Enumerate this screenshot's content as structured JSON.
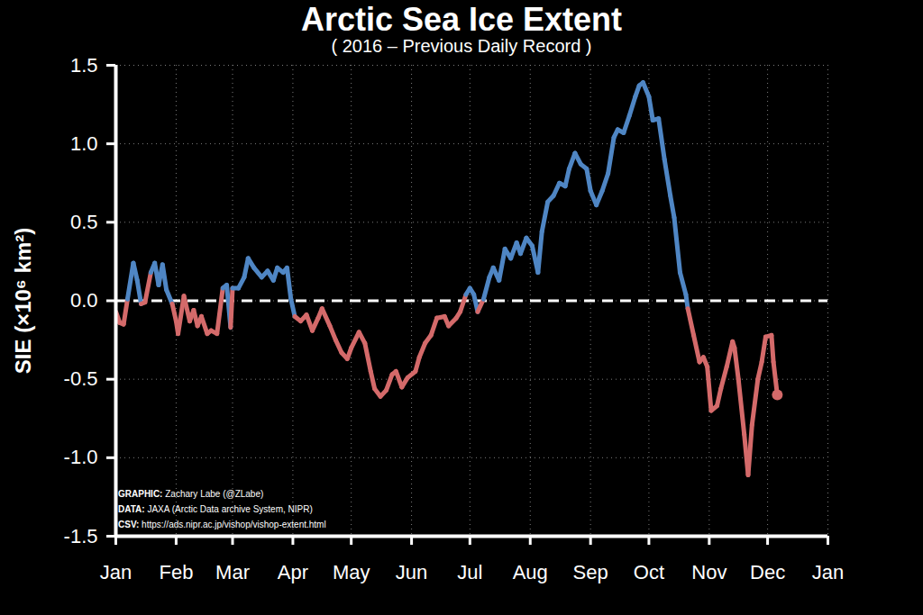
{
  "chart_data": {
    "type": "line",
    "title": "Arctic Sea Ice Extent",
    "subtitle": "( 2016 – Previous Daily Record )",
    "y_label": "SIE (×10⁶ km²)",
    "annotations": [
      "GRAPHIC: Zachary Labe (@ZLabe)",
      "DATA: JAXA (Arctic Data archive System, NIPR)",
      "CSV: https://ads.nipr.ac.jp/vishop/vishop-extent.html"
    ],
    "x": [
      1,
      3,
      5,
      7,
      10,
      12,
      14,
      16,
      19,
      21,
      23,
      25,
      27,
      30,
      32,
      33,
      36,
      39,
      41,
      43,
      45,
      48,
      50,
      53,
      56,
      58,
      60,
      61,
      64,
      67,
      69,
      72,
      76,
      79,
      82,
      84,
      87,
      89,
      91,
      93,
      96,
      99,
      102,
      105,
      107,
      111,
      114,
      117,
      120,
      122,
      126,
      129,
      132,
      134,
      137,
      140,
      143,
      145,
      148,
      151,
      155,
      157,
      160,
      163,
      166,
      170,
      172,
      176,
      178,
      181,
      183,
      185,
      187,
      190,
      193,
      195,
      198,
      201,
      204,
      207,
      209,
      212,
      215,
      218,
      220,
      223,
      226,
      229,
      232,
      234,
      237,
      240,
      243,
      245,
      248,
      251,
      254,
      257,
      259,
      262,
      265,
      268,
      270,
      272,
      275,
      277,
      280,
      283,
      286,
      288,
      291,
      294,
      295,
      298,
      301,
      303,
      305,
      307,
      310,
      312,
      315,
      318,
      319,
      321,
      324,
      326,
      328,
      331,
      333,
      335,
      338,
      339,
      341
    ],
    "values": [
      -0.07,
      -0.14,
      -0.15,
      0.01,
      0.24,
      0.13,
      -0.02,
      -0.01,
      0.18,
      0.24,
      0.1,
      0.23,
      0.07,
      -0.02,
      -0.13,
      -0.21,
      0.03,
      -0.13,
      -0.06,
      -0.16,
      -0.1,
      -0.21,
      -0.19,
      -0.21,
      0.08,
      0.1,
      -0.17,
      0.08,
      0.08,
      0.15,
      0.27,
      0.21,
      0.15,
      0.19,
      0.13,
      0.21,
      0.18,
      0.21,
      0.01,
      -0.1,
      -0.13,
      -0.09,
      -0.19,
      -0.11,
      -0.05,
      -0.16,
      -0.25,
      -0.33,
      -0.37,
      -0.3,
      -0.2,
      -0.27,
      -0.45,
      -0.56,
      -0.61,
      -0.57,
      -0.47,
      -0.45,
      -0.55,
      -0.49,
      -0.45,
      -0.36,
      -0.27,
      -0.22,
      -0.11,
      -0.1,
      -0.16,
      -0.11,
      -0.07,
      0.04,
      0.08,
      0.04,
      -0.07,
      0.01,
      0.15,
      0.21,
      0.13,
      0.33,
      0.27,
      0.37,
      0.3,
      0.4,
      0.35,
      0.18,
      0.44,
      0.63,
      0.67,
      0.75,
      0.73,
      0.84,
      0.94,
      0.87,
      0.84,
      0.7,
      0.61,
      0.7,
      0.81,
      1.04,
      1.09,
      1.07,
      1.18,
      1.3,
      1.37,
      1.39,
      1.3,
      1.15,
      1.16,
      0.9,
      0.67,
      0.53,
      0.18,
      0.04,
      -0.05,
      -0.22,
      -0.39,
      -0.36,
      -0.42,
      -0.7,
      -0.67,
      -0.56,
      -0.42,
      -0.26,
      -0.3,
      -0.5,
      -0.85,
      -1.11,
      -0.79,
      -0.5,
      -0.39,
      -0.23,
      -0.22,
      -0.39,
      -0.6
    ],
    "colors": [
      "#d46a6a",
      "#d46a6a",
      "#d46a6a",
      "#4f86c4",
      "#4f86c4",
      "#4f86c4",
      "#d46a6a",
      "#d46a6a",
      "#4f86c4",
      "#4f86c4",
      "#4f86c4",
      "#4f86c4",
      "#4f86c4",
      "#d46a6a",
      "#d46a6a",
      "#d46a6a",
      "#d46a6a",
      "#d46a6a",
      "#d46a6a",
      "#d46a6a",
      "#d46a6a",
      "#d46a6a",
      "#d46a6a",
      "#d46a6a",
      "#4f86c4",
      "#4f86c4",
      "#d46a6a",
      "#4f86c4",
      "#4f86c4",
      "#4f86c4",
      "#4f86c4",
      "#4f86c4",
      "#4f86c4",
      "#4f86c4",
      "#4f86c4",
      "#4f86c4",
      "#4f86c4",
      "#4f86c4",
      "#4f86c4",
      "#d46a6a",
      "#d46a6a",
      "#d46a6a",
      "#d46a6a",
      "#d46a6a",
      "#d46a6a",
      "#d46a6a",
      "#d46a6a",
      "#d46a6a",
      "#d46a6a",
      "#d46a6a",
      "#d46a6a",
      "#d46a6a",
      "#d46a6a",
      "#d46a6a",
      "#d46a6a",
      "#d46a6a",
      "#d46a6a",
      "#d46a6a",
      "#d46a6a",
      "#d46a6a",
      "#d46a6a",
      "#d46a6a",
      "#d46a6a",
      "#d46a6a",
      "#d46a6a",
      "#d46a6a",
      "#d46a6a",
      "#d46a6a",
      "#d46a6a",
      "#4f86c4",
      "#4f86c4",
      "#4f86c4",
      "#d46a6a",
      "#4f86c4",
      "#4f86c4",
      "#4f86c4",
      "#4f86c4",
      "#4f86c4",
      "#4f86c4",
      "#4f86c4",
      "#4f86c4",
      "#4f86c4",
      "#4f86c4",
      "#4f86c4",
      "#4f86c4",
      "#4f86c4",
      "#4f86c4",
      "#4f86c4",
      "#4f86c4",
      "#4f86c4",
      "#4f86c4",
      "#4f86c4",
      "#4f86c4",
      "#4f86c4",
      "#4f86c4",
      "#4f86c4",
      "#4f86c4",
      "#4f86c4",
      "#4f86c4",
      "#4f86c4",
      "#4f86c4",
      "#4f86c4",
      "#4f86c4",
      "#4f86c4",
      "#4f86c4",
      "#4f86c4",
      "#4f86c4",
      "#4f86c4",
      "#4f86c4",
      "#4f86c4",
      "#4f86c4",
      "#4f86c4",
      "#d46a6a",
      "#d46a6a",
      "#d46a6a",
      "#d46a6a",
      "#d46a6a",
      "#d46a6a",
      "#d46a6a",
      "#d46a6a",
      "#d46a6a",
      "#d46a6a",
      "#d46a6a",
      "#d46a6a",
      "#d46a6a",
      "#d46a6a",
      "#d46a6a",
      "#d46a6a",
      "#d46a6a",
      "#d46a6a",
      "#d46a6a",
      "#d46a6a",
      "#d46a6a"
    ],
    "baseline": 0,
    "xlim": [
      1,
      367
    ],
    "xticks": [
      {
        "value": 1,
        "label": "Jan"
      },
      {
        "value": 32,
        "label": "Feb"
      },
      {
        "value": 61,
        "label": "Mar"
      },
      {
        "value": 92,
        "label": "Apr"
      },
      {
        "value": 122,
        "label": "May"
      },
      {
        "value": 153,
        "label": "Jun"
      },
      {
        "value": 183,
        "label": "Jul"
      },
      {
        "value": 214,
        "label": "Aug"
      },
      {
        "value": 245,
        "label": "Sep"
      },
      {
        "value": 275,
        "label": "Oct"
      },
      {
        "value": 306,
        "label": "Nov"
      },
      {
        "value": 336,
        "label": "Dec"
      },
      {
        "value": 367,
        "label": "Jan"
      }
    ],
    "ylim": [
      -1.5,
      1.5
    ],
    "yticks": [
      -1.5,
      {
        "value": -1,
        "label": "-1.0"
      },
      -0.5,
      {
        "value": 0,
        "label": "0.0"
      },
      0.5,
      {
        "value": 1,
        "label": "1.0"
      },
      1.5
    ],
    "grid": true
  }
}
